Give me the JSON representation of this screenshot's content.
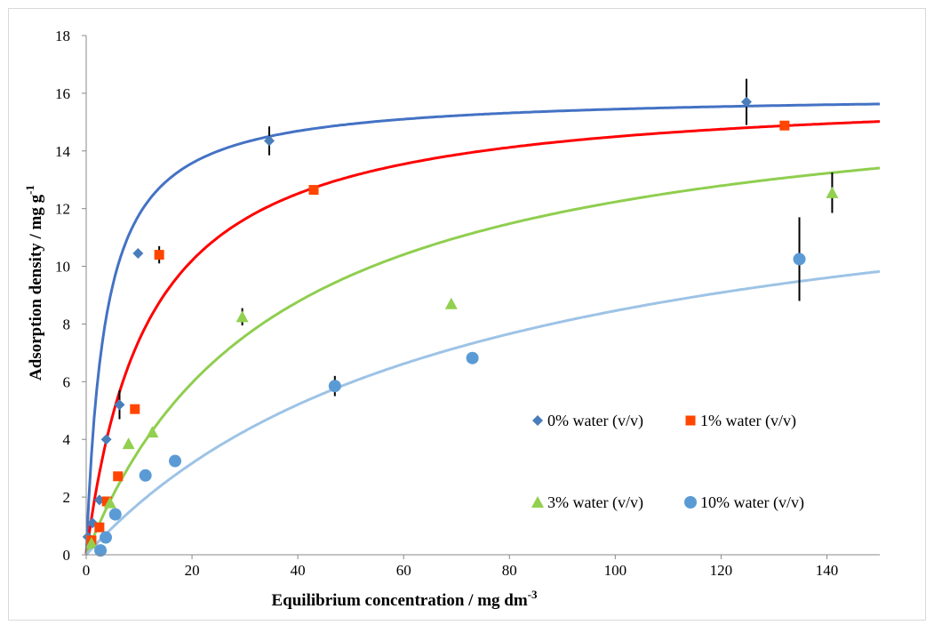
{
  "chart_data": {
    "type": "scatter",
    "title": "",
    "xlabel": "Equilibrium concentration / mg dm",
    "xlabel_sup": "-3",
    "ylabel": "Adsorption density / mg g",
    "ylabel_sup": "-1",
    "xlim": [
      0,
      150
    ],
    "ylim": [
      0,
      18
    ],
    "x_ticks": [
      0,
      20,
      40,
      60,
      80,
      100,
      120,
      140
    ],
    "y_ticks": [
      0,
      2,
      4,
      6,
      8,
      10,
      12,
      14,
      16,
      18
    ],
    "grid": false,
    "legend_placement": "lower-right inside plot, two columns",
    "series": [
      {
        "name": "0% water (v/v)",
        "color": "#4a7ebb",
        "marker": "diamond",
        "fit_color": "#4472c4",
        "fit": {
          "qmax": 16.0,
          "K": 0.28
        },
        "points": [
          {
            "x": 0.3,
            "y": 0.62
          },
          {
            "x": 1.2,
            "y": 1.1
          },
          {
            "x": 2.5,
            "y": 1.9
          },
          {
            "x": 3.8,
            "y": 4.0
          },
          {
            "x": 6.3,
            "y": 5.2,
            "err": 0.5
          },
          {
            "x": 9.8,
            "y": 10.45
          },
          {
            "x": 34.6,
            "y": 14.35,
            "err": 0.5
          },
          {
            "x": 124.8,
            "y": 15.7,
            "err": 0.8
          }
        ]
      },
      {
        "name": "1% water (v/v)",
        "color": "#ff4500",
        "marker": "square",
        "fit_color": "#ff0000",
        "fit": {
          "qmax": 16.2,
          "K": 0.085
        },
        "points": [
          {
            "x": 1.0,
            "y": 0.5
          },
          {
            "x": 2.5,
            "y": 0.95
          },
          {
            "x": 3.9,
            "y": 1.85
          },
          {
            "x": 6.0,
            "y": 2.72
          },
          {
            "x": 9.2,
            "y": 5.05
          },
          {
            "x": 13.8,
            "y": 10.4,
            "err": 0.3
          },
          {
            "x": 43.0,
            "y": 12.65,
            "err": 0.15
          },
          {
            "x": 132.0,
            "y": 14.88,
            "err": 0.15
          }
        ]
      },
      {
        "name": "3% water (v/v)",
        "color": "#92d050",
        "marker": "triangle",
        "fit_color": "#8fce4f",
        "fit": {
          "qmax": 16.6,
          "K": 0.028
        },
        "points": [
          {
            "x": 1.0,
            "y": 0.4
          },
          {
            "x": 4.5,
            "y": 1.8
          },
          {
            "x": 8.0,
            "y": 3.85
          },
          {
            "x": 12.5,
            "y": 4.25
          },
          {
            "x": 29.5,
            "y": 8.25,
            "err": 0.3
          },
          {
            "x": 69.0,
            "y": 8.7
          },
          {
            "x": 141.0,
            "y": 12.55,
            "err": 0.7
          }
        ]
      },
      {
        "name": "10% water (v/v)",
        "color": "#5b9bd5",
        "marker": "circle",
        "fit_color": "#9dc3e6",
        "fit": {
          "qmax": 14.5,
          "K": 0.014
        },
        "points": [
          {
            "x": 2.7,
            "y": 0.15
          },
          {
            "x": 3.7,
            "y": 0.6
          },
          {
            "x": 5.5,
            "y": 1.4
          },
          {
            "x": 11.2,
            "y": 2.75
          },
          {
            "x": 16.8,
            "y": 3.25
          },
          {
            "x": 47.0,
            "y": 5.85,
            "err": 0.35
          },
          {
            "x": 73.0,
            "y": 6.82
          },
          {
            "x": 134.8,
            "y": 10.25,
            "err": 1.45
          }
        ]
      }
    ]
  }
}
